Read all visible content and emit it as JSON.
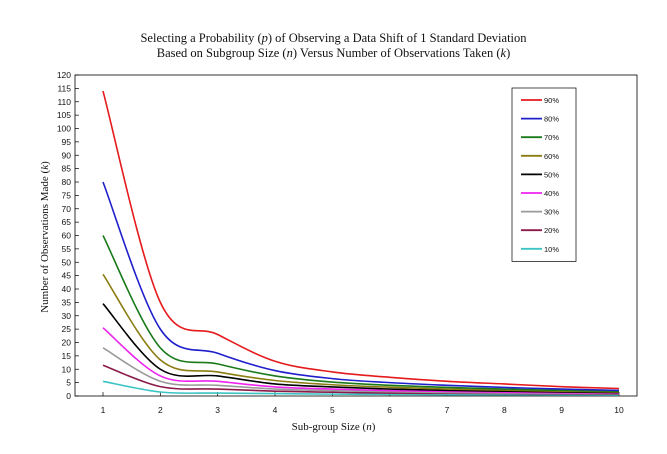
{
  "chart_data": {
    "type": "line",
    "title_parts": [
      {
        "text": "Selecting a Probability (",
        "italic": false
      },
      {
        "text": "p",
        "italic": true
      },
      {
        "text": ") of Observing a Data Shift of 1 Standard Deviation",
        "italic": false
      }
    ],
    "subtitle_parts": [
      {
        "text": "Based on Subgroup Size (",
        "italic": false
      },
      {
        "text": "n",
        "italic": true
      },
      {
        "text": ") Versus Number of Observations Taken (",
        "italic": false
      },
      {
        "text": "k",
        "italic": true
      },
      {
        "text": ")",
        "italic": false
      }
    ],
    "xlabel_parts": [
      {
        "text": "Sub-group Size (",
        "italic": false
      },
      {
        "text": "n",
        "italic": true
      },
      {
        "text": ")",
        "italic": false
      }
    ],
    "ylabel_parts": [
      {
        "text": "Number of Observations Made (",
        "italic": false
      },
      {
        "text": "k",
        "italic": true
      },
      {
        "text": ")",
        "italic": false
      }
    ],
    "x": [
      1,
      2,
      3,
      4,
      5,
      6,
      7,
      8,
      9,
      10
    ],
    "xlim": [
      1,
      10
    ],
    "ylim": [
      0,
      120
    ],
    "y_ticks": [
      0,
      5,
      10,
      15,
      20,
      25,
      30,
      35,
      40,
      45,
      50,
      55,
      60,
      65,
      70,
      75,
      80,
      85,
      90,
      95,
      100,
      105,
      110,
      115,
      120
    ],
    "x_ticks": [
      1,
      2,
      3,
      4,
      5,
      6,
      7,
      8,
      9,
      10
    ],
    "grid": false,
    "legend_position": "top-right",
    "series": [
      {
        "name": "90%",
        "color": "#e41a1c",
        "values": [
          114,
          35,
          23,
          13,
          9,
          7,
          5.5,
          4.5,
          3.5,
          2.8
        ]
      },
      {
        "name": "80%",
        "color": "#1f1fcc",
        "values": [
          80,
          25,
          16,
          9.5,
          6.5,
          5,
          4,
          3.2,
          2.6,
          2.1
        ]
      },
      {
        "name": "70%",
        "color": "#1a7a1a",
        "values": [
          60,
          18,
          12,
          7.5,
          5.2,
          4,
          3.2,
          2.6,
          2.1,
          1.8
        ]
      },
      {
        "name": "60%",
        "color": "#8b7d12",
        "values": [
          45.5,
          13.5,
          9,
          5.8,
          4.2,
          3.3,
          2.6,
          2.2,
          1.8,
          1.5
        ]
      },
      {
        "name": "50%",
        "color": "#000000",
        "values": [
          34.5,
          10,
          7.5,
          4.5,
          3.4,
          2.6,
          2.1,
          1.8,
          1.5,
          1.3
        ]
      },
      {
        "name": "40%",
        "color": "#ee22ee",
        "values": [
          25.5,
          7.5,
          5.5,
          3.4,
          2.6,
          2,
          1.7,
          1.4,
          1.2,
          1.1
        ]
      },
      {
        "name": "30%",
        "color": "#9a9a9a",
        "values": [
          18,
          5.5,
          4,
          2.6,
          2,
          1.6,
          1.3,
          1.1,
          1,
          0.9
        ]
      },
      {
        "name": "20%",
        "color": "#8b1a4a",
        "values": [
          11.5,
          3.5,
          2.6,
          1.8,
          1.4,
          1.1,
          1,
          0.9,
          0.8,
          0.7
        ]
      },
      {
        "name": "10%",
        "color": "#3cc4c4",
        "values": [
          5.5,
          1.5,
          1.1,
          0.9,
          0.7,
          0.6,
          0.5,
          0.5,
          0.45,
          0.4
        ]
      }
    ]
  }
}
